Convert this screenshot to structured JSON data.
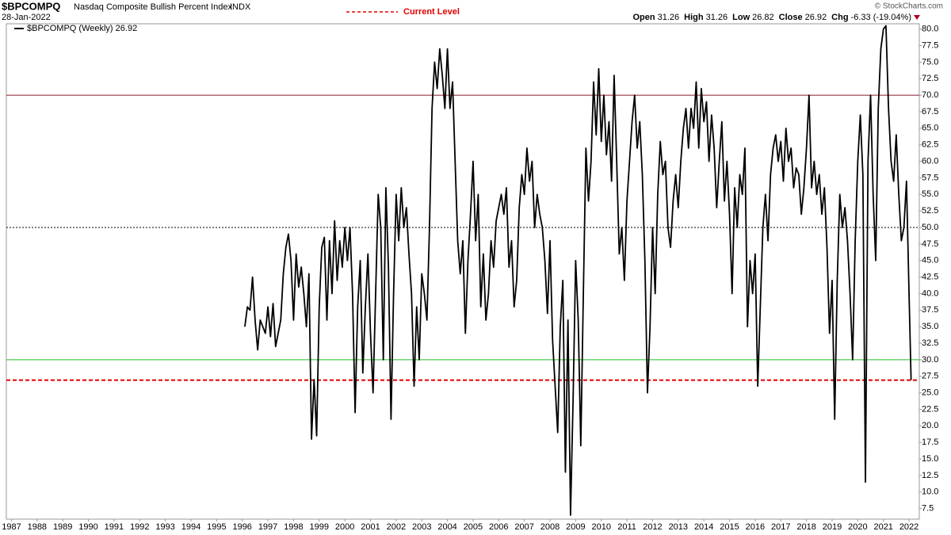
{
  "chart_data": {
    "type": "line",
    "symbol": "$BPCOMPQ",
    "title": "Nasdaq Composite Bullish Percent Index",
    "exchange": "INDX",
    "date": "28-Jan-2022",
    "credit": "© StockCharts.com",
    "quote": [
      {
        "label": "Open",
        "value": 31.26
      },
      {
        "label": "High",
        "value": 31.26
      },
      {
        "label": "Low",
        "value": 26.82
      },
      {
        "label": "Close",
        "value": 26.92
      },
      {
        "label": "Chg",
        "value": "-6.33 (-19.04%)"
      }
    ],
    "reference_lines": [
      {
        "value": 70,
        "color": "#8b1a2b",
        "style": "solid"
      },
      {
        "value": 50,
        "color": "#000000",
        "style": "dashed"
      },
      {
        "value": 30,
        "color": "#22c022",
        "style": "solid"
      },
      {
        "value": 26.92,
        "color": "#e00000",
        "style": "dashed",
        "label": "Current Level"
      }
    ],
    "xlim": [
      1986.8,
      2022.4
    ],
    "xticks": [
      1987,
      1988,
      1989,
      1990,
      1991,
      1992,
      1993,
      1994,
      1995,
      1996,
      1997,
      1998,
      1999,
      2000,
      2001,
      2002,
      2003,
      2004,
      2005,
      2006,
      2007,
      2008,
      2009,
      2010,
      2011,
      2012,
      2013,
      2014,
      2015,
      2016,
      2017,
      2018,
      2019,
      2020,
      2021,
      2022
    ],
    "ylim": [
      5.9,
      80.8
    ],
    "yticks": [
      7.5,
      {
        "value": 10,
        "label": "10.0"
      },
      12.5,
      {
        "value": 15,
        "label": "15.0"
      },
      17.5,
      {
        "value": 20,
        "label": "20.0"
      },
      22.5,
      {
        "value": 25,
        "label": "25.0"
      },
      27.5,
      {
        "value": 30,
        "label": "30.0"
      },
      32.5,
      {
        "value": 35,
        "label": "35.0"
      },
      37.5,
      {
        "value": 40,
        "label": "40.0"
      },
      42.5,
      {
        "value": 45,
        "label": "45.0"
      },
      47.5,
      {
        "value": 50,
        "label": "50.0"
      },
      52.5,
      {
        "value": 55,
        "label": "55.0"
      },
      57.5,
      {
        "value": 60,
        "label": "60.0"
      },
      62.5,
      {
        "value": 65,
        "label": "65.0"
      },
      67.5,
      {
        "value": 70,
        "label": "70.0"
      },
      72.5,
      {
        "value": 75,
        "label": "75.0"
      },
      77.5,
      {
        "value": 80,
        "label": "80.0"
      }
    ],
    "grid": false,
    "x": [
      1996.1,
      1996.2,
      1996.3,
      1996.4,
      1996.5,
      1996.6,
      1996.7,
      1996.8,
      1996.9,
      1997,
      1997.1,
      1997.2,
      1997.3,
      1997.4,
      1997.5,
      1997.6,
      1997.7,
      1997.8,
      1997.9,
      1998,
      1998.1,
      1998.2,
      1998.3,
      1998.4,
      1998.5,
      1998.6,
      1998.7,
      1998.8,
      1998.9,
      1999,
      1999.1,
      1999.2,
      1999.3,
      1999.4,
      1999.5,
      1999.6,
      1999.7,
      1999.8,
      1999.9,
      2000,
      2000.1,
      2000.2,
      2000.3,
      2000.4,
      2000.5,
      2000.6,
      2000.7,
      2000.8,
      2000.9,
      2001,
      2001.1,
      2001.2,
      2001.3,
      2001.4,
      2001.5,
      2001.6,
      2001.7,
      2001.8,
      2001.9,
      2002,
      2002.1,
      2002.2,
      2002.3,
      2002.4,
      2002.5,
      2002.6,
      2002.7,
      2002.8,
      2002.9,
      2003,
      2003.1,
      2003.2,
      2003.3,
      2003.4,
      2003.5,
      2003.6,
      2003.7,
      2003.8,
      2003.9,
      2004,
      2004.1,
      2004.2,
      2004.3,
      2004.4,
      2004.5,
      2004.6,
      2004.7,
      2004.8,
      2004.9,
      2005,
      2005.1,
      2005.2,
      2005.3,
      2005.4,
      2005.5,
      2005.6,
      2005.7,
      2005.8,
      2005.9,
      2006,
      2006.1,
      2006.2,
      2006.3,
      2006.4,
      2006.5,
      2006.6,
      2006.7,
      2006.8,
      2006.9,
      2007,
      2007.1,
      2007.2,
      2007.3,
      2007.4,
      2007.5,
      2007.6,
      2007.7,
      2007.8,
      2007.9,
      2008,
      2008.1,
      2008.2,
      2008.3,
      2008.4,
      2008.5,
      2008.6,
      2008.7,
      2008.8,
      2008.9,
      2009,
      2009.1,
      2009.2,
      2009.3,
      2009.4,
      2009.5,
      2009.6,
      2009.7,
      2009.8,
      2009.9,
      2010,
      2010.1,
      2010.2,
      2010.3,
      2010.4,
      2010.5,
      2010.6,
      2010.7,
      2010.8,
      2010.9,
      2011,
      2011.1,
      2011.2,
      2011.3,
      2011.4,
      2011.5,
      2011.6,
      2011.7,
      2011.8,
      2011.9,
      2012,
      2012.1,
      2012.2,
      2012.3,
      2012.4,
      2012.5,
      2012.6,
      2012.7,
      2012.8,
      2012.9,
      2013,
      2013.1,
      2013.2,
      2013.3,
      2013.4,
      2013.5,
      2013.6,
      2013.7,
      2013.8,
      2013.9,
      2014,
      2014.1,
      2014.2,
      2014.3,
      2014.4,
      2014.5,
      2014.6,
      2014.7,
      2014.8,
      2014.9,
      2015,
      2015.1,
      2015.2,
      2015.3,
      2015.4,
      2015.5,
      2015.6,
      2015.7,
      2015.8,
      2015.9,
      2016,
      2016.1,
      2016.2,
      2016.3,
      2016.4,
      2016.5,
      2016.6,
      2016.7,
      2016.8,
      2016.9,
      2017,
      2017.1,
      2017.2,
      2017.3,
      2017.4,
      2017.5,
      2017.6,
      2017.7,
      2017.8,
      2017.9,
      2018,
      2018.1,
      2018.2,
      2018.3,
      2018.4,
      2018.5,
      2018.6,
      2018.7,
      2018.8,
      2018.9,
      2019,
      2019.1,
      2019.2,
      2019.3,
      2019.4,
      2019.5,
      2019.6,
      2019.7,
      2019.8,
      2019.9,
      2020,
      2020.1,
      2020.2,
      2020.3,
      2020.4,
      2020.5,
      2020.6,
      2020.7,
      2020.8,
      2020.9,
      2021,
      2021.1,
      2021.2,
      2021.3,
      2021.4,
      2021.5,
      2021.6,
      2021.7,
      2021.8,
      2021.9,
      2022,
      2022.08
    ],
    "series": [
      {
        "name": "$BPCOMPQ (Weekly)",
        "color": "#000000",
        "values": [
          35,
          38,
          37.5,
          42.5,
          36,
          31.5,
          36,
          35,
          34,
          38,
          33.5,
          38.5,
          32,
          34,
          36,
          43,
          47,
          49,
          45,
          36,
          46,
          41,
          44,
          40,
          35,
          43,
          18,
          27,
          18.5,
          38,
          47,
          48.5,
          36,
          48,
          40,
          51,
          42,
          48,
          44,
          50,
          45,
          50,
          40,
          22,
          38,
          45,
          28,
          38,
          46,
          34,
          25,
          40,
          55,
          50,
          30,
          56,
          44,
          21,
          40,
          55,
          48,
          56,
          50,
          53,
          46,
          40,
          26,
          38,
          30,
          43,
          40,
          36,
          50,
          68,
          75,
          71,
          77,
          73,
          68,
          77,
          68,
          72,
          60,
          48,
          43,
          48,
          34,
          45,
          52,
          60,
          48,
          55,
          38,
          46,
          36,
          40,
          48,
          44,
          51,
          53,
          55,
          52,
          56,
          44,
          48,
          38,
          42,
          53,
          58,
          55,
          62,
          57,
          60,
          50,
          55,
          52,
          50,
          45,
          37,
          48,
          33,
          26,
          19,
          35,
          42,
          13,
          36,
          6.5,
          24,
          45,
          36,
          17,
          40,
          62,
          54,
          60,
          72,
          64,
          74,
          63,
          70,
          61,
          66,
          57,
          73,
          60,
          46,
          50,
          42,
          54,
          60,
          66,
          70,
          62,
          66,
          58,
          45,
          25,
          35,
          50,
          40,
          55,
          63,
          58,
          60,
          50,
          47,
          54,
          58,
          53,
          60,
          65,
          68,
          62,
          68,
          65,
          72,
          62,
          71,
          66,
          69,
          60,
          67,
          62,
          53,
          60,
          66,
          54,
          60,
          52,
          40,
          56,
          50,
          58,
          55,
          62,
          35,
          45,
          40,
          46,
          26,
          38,
          50,
          55,
          48,
          58,
          62,
          64,
          60,
          63,
          57,
          65,
          60,
          62,
          56,
          59,
          58,
          52,
          56,
          62,
          70,
          56,
          60,
          55,
          58,
          52,
          56,
          47,
          34,
          42,
          21,
          42,
          55,
          50,
          53,
          48,
          40,
          30,
          48,
          60,
          67,
          58,
          11.5,
          60,
          70,
          55,
          45,
          68,
          77,
          80,
          80.5,
          68,
          60,
          57,
          64,
          55,
          48,
          50,
          57,
          40,
          26.92
        ]
      }
    ]
  }
}
